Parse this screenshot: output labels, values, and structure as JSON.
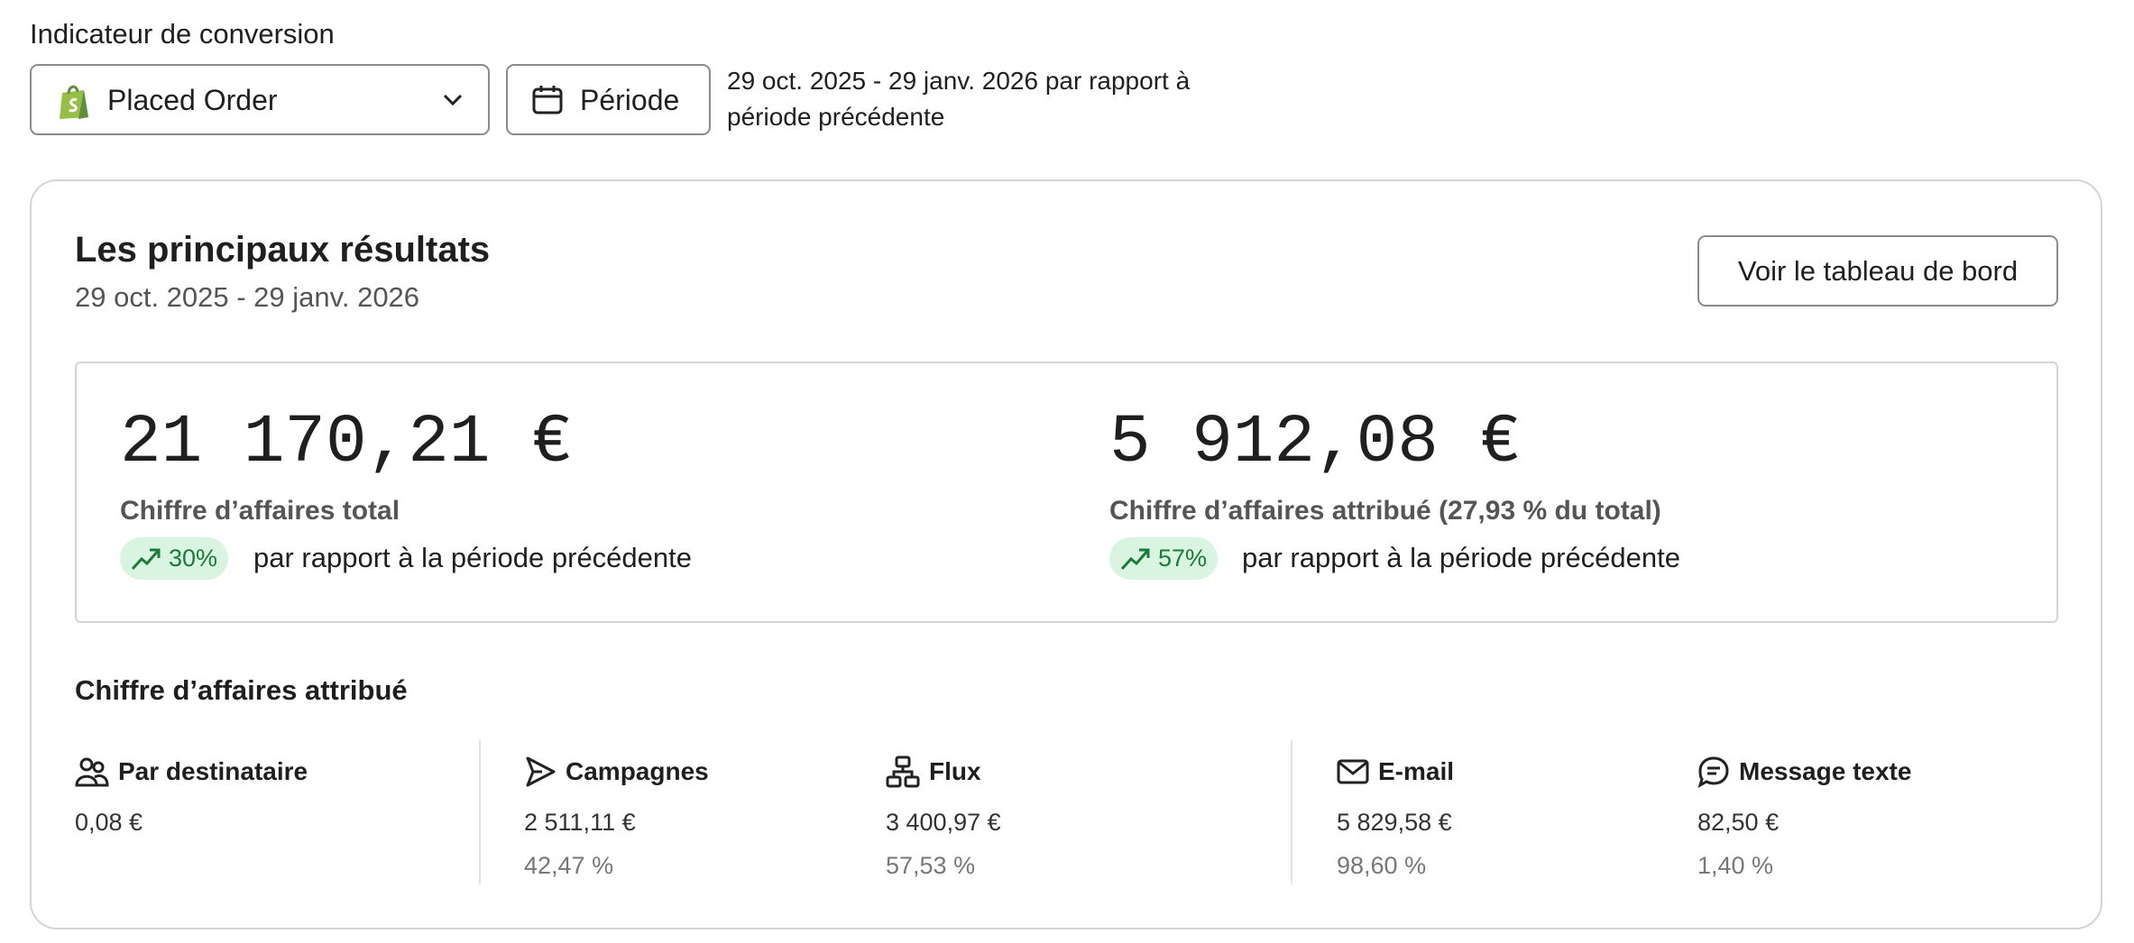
{
  "header": {
    "label": "Indicateur de conversion",
    "metric": "Placed Order",
    "period_button": "Période",
    "period_text_1": "29 oct. 2025 - 29 janv. 2026 par rapport à",
    "period_text_2": "période précédente"
  },
  "card": {
    "title": "Les principaux résultats",
    "subtitle": "29 oct. 2025 - 29 janv. 2026",
    "button": "Voir le tableau de bord",
    "kpis": [
      {
        "value": "21 170,21 €",
        "label": "Chiffre d’affaires total",
        "change": "30%",
        "comparison": "par rapport à la période précédente"
      },
      {
        "value": "5 912,08 €",
        "label": "Chiffre d’affaires attribué (27,93 % du total)",
        "change": "57%",
        "comparison": "par rapport à la période précédente"
      }
    ],
    "section_title": "Chiffre d’affaires attribué",
    "columns": [
      {
        "title": "Par destinataire",
        "value": "0,08 €"
      },
      {
        "title": "Campagnes",
        "value": "2 511,11 €",
        "share": "42,47 %"
      },
      {
        "title": "Flux",
        "value": "3 400,97 €",
        "share": "57,53 %"
      },
      {
        "title": "E-mail",
        "value": "5 829,58 €",
        "share": "98,60 %"
      },
      {
        "title": "Message texte",
        "value": "82,50 €",
        "share": "1,40 %"
      }
    ]
  }
}
